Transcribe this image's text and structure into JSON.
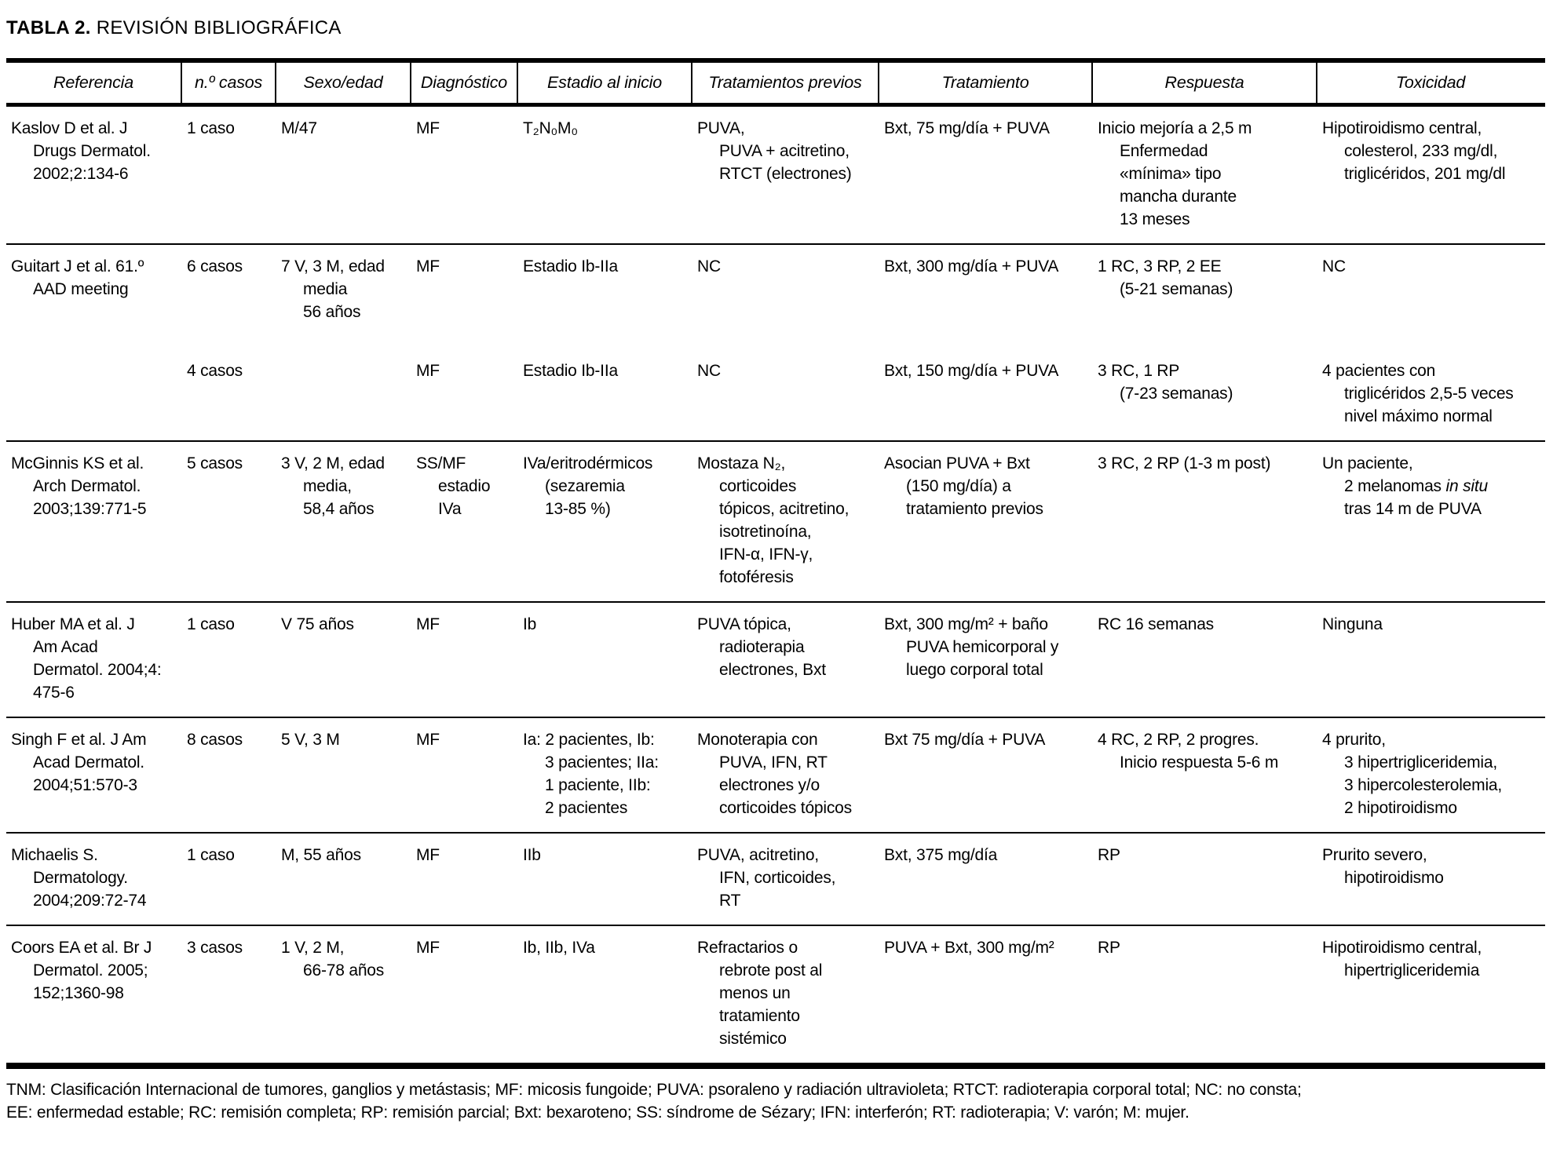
{
  "colors": {
    "text": "#000000",
    "background": "#ffffff",
    "rules": "#000000"
  },
  "title": {
    "label": "TABLA 2.",
    "text": "REVISIÓN BIBLIOGRÁFICA"
  },
  "table": {
    "columns": [
      {
        "key": "referencia",
        "label": "Referencia"
      },
      {
        "key": "casos",
        "label": "n.º casos"
      },
      {
        "key": "sexo_edad",
        "label": "Sexo/edad"
      },
      {
        "key": "diagnostico",
        "label": "Diagnóstico"
      },
      {
        "key": "estadio",
        "label": "Estadio al inicio"
      },
      {
        "key": "tratamientos_previos",
        "label": "Tratamientos previos"
      },
      {
        "key": "tratamiento",
        "label": "Tratamiento"
      },
      {
        "key": "respuesta",
        "label": "Respuesta"
      },
      {
        "key": "toxicidad",
        "label": "Toxicidad"
      }
    ],
    "rows": [
      {
        "divider_above": false,
        "cells": {
          "referencia": "Kaslov D et al. J\nDrugs Dermatol.\n2002;2:134-6",
          "casos": "1 caso",
          "sexo_edad": "M/47",
          "diagnostico": "MF",
          "estadio": "T₂N₀M₀",
          "tratamientos_previos": "PUVA,\nPUVA + acitretino,\nRTCT (electrones)",
          "tratamiento": "Bxt, 75 mg/día + PUVA",
          "respuesta": "Inicio mejoría a 2,5 m\nEnfermedad\n«mínima» tipo\nmancha durante\n13 meses",
          "toxicidad": "Hipotiroidismo central,\ncolesterol, 233 mg/dl,\ntriglicéridos, 201 mg/dl"
        }
      },
      {
        "divider_above": true,
        "cells": {
          "referencia": "Guitart J et al. 61.º\nAAD meeting",
          "casos": "6 casos",
          "sexo_edad": "7 V, 3 M, edad\nmedia\n56 años",
          "diagnostico": "MF",
          "estadio": "Estadio Ib-IIa",
          "tratamientos_previos": "NC",
          "tratamiento": "Bxt, 300 mg/día + PUVA",
          "respuesta": "1 RC, 3 RP, 2 EE\n(5-21 semanas)",
          "toxicidad": "NC"
        }
      },
      {
        "divider_above": false,
        "cells": {
          "referencia": "",
          "casos": "4 casos",
          "sexo_edad": "",
          "diagnostico": "MF",
          "estadio": "Estadio Ib-IIa",
          "tratamientos_previos": "NC",
          "tratamiento": "Bxt, 150 mg/día + PUVA",
          "respuesta": "3 RC, 1 RP\n(7-23 semanas)",
          "toxicidad": "4 pacientes con\ntriglicéridos 2,5-5 veces\nnivel máximo normal"
        }
      },
      {
        "divider_above": true,
        "cells": {
          "referencia": "McGinnis KS et al.\nArch Dermatol.\n2003;139:771-5",
          "casos": "5 casos",
          "sexo_edad": "3 V, 2 M, edad\nmedia,\n58,4 años",
          "diagnostico": "SS/MF\nestadio\nIVa",
          "estadio": "IVa/eritrodérmicos\n(sezaremia\n13-85 %)",
          "tratamientos_previos": "Mostaza N₂,\ncorticoides\ntópicos, acitretino,\nisotretinoína,\nIFN-α, IFN-γ,\nfotoféresis",
          "tratamiento": "Asocian PUVA + Bxt\n(150 mg/día) a\ntratamiento previos",
          "respuesta": "3 RC, 2 RP (1-3 m post)",
          "toxicidad": "Un paciente,\n2 melanomas *in situ*\ntras 14 m de PUVA"
        }
      },
      {
        "divider_above": true,
        "cells": {
          "referencia": "Huber MA et al. J\nAm Acad\nDermatol. 2004;4:\n475-6",
          "casos": "1 caso",
          "sexo_edad": "V 75 años",
          "diagnostico": "MF",
          "estadio": "Ib",
          "tratamientos_previos": "PUVA tópica,\nradioterapia\nelectrones, Bxt",
          "tratamiento": "Bxt, 300 mg/m² + baño\nPUVA hemicorporal y\nluego corporal total",
          "respuesta": "RC 16 semanas",
          "toxicidad": "Ninguna"
        }
      },
      {
        "divider_above": true,
        "cells": {
          "referencia": "Singh F et al. J Am\nAcad Dermatol.\n2004;51:570-3",
          "casos": "8 casos",
          "sexo_edad": "5 V, 3 M",
          "diagnostico": "MF",
          "estadio": "Ia: 2 pacientes, Ib:\n3 pacientes; IIa:\n1 paciente, IIb:\n2 pacientes",
          "tratamientos_previos": "Monoterapia con\nPUVA, IFN, RT\nelectrones y/o\ncorticoides tópicos",
          "tratamiento": "Bxt 75 mg/día + PUVA",
          "respuesta": "4 RC, 2 RP, 2 progres.\nInicio respuesta 5-6 m",
          "toxicidad": "4 prurito,\n3 hipertrigliceridemia,\n3 hipercolesterolemia,\n2 hipotiroidismo"
        }
      },
      {
        "divider_above": true,
        "cells": {
          "referencia": "Michaelis S.\nDermatology.\n2004;209:72-74",
          "casos": "1 caso",
          "sexo_edad": "M, 55 años",
          "diagnostico": "MF",
          "estadio": "IIb",
          "tratamientos_previos": "PUVA, acitretino,\nIFN, corticoides,\nRT",
          "tratamiento": "Bxt, 375 mg/día",
          "respuesta": "RP",
          "toxicidad": "Prurito severo,\nhipotiroidismo"
        }
      },
      {
        "divider_above": true,
        "cells": {
          "referencia": "Coors EA et al. Br J\nDermatol. 2005;\n152;1360-98",
          "casos": "3 casos",
          "sexo_edad": "1 V, 2 M,\n66-78 años",
          "diagnostico": "MF",
          "estadio": "Ib, IIb, IVa",
          "tratamientos_previos": "Refractarios o\nrebrote post al\nmenos un\ntratamiento\nsistémico",
          "tratamiento": "PUVA + Bxt, 300 mg/m²",
          "respuesta": "RP",
          "toxicidad": "Hipotiroidismo central,\nhipertrigliceridemia"
        }
      }
    ]
  },
  "footnote": "TNM: Clasificación Internacional de tumores, ganglios y metástasis; MF: micosis fungoide; PUVA: psoraleno y radiación ultravioleta; RTCT: radioterapia corporal total; NC: no consta;\nEE: enfermedad estable; RC: remisión completa; RP: remisión parcial; Bxt: bexaroteno; SS: síndrome de Sézary; IFN: interferón; RT: radioterapia; V: varón; M: mujer."
}
